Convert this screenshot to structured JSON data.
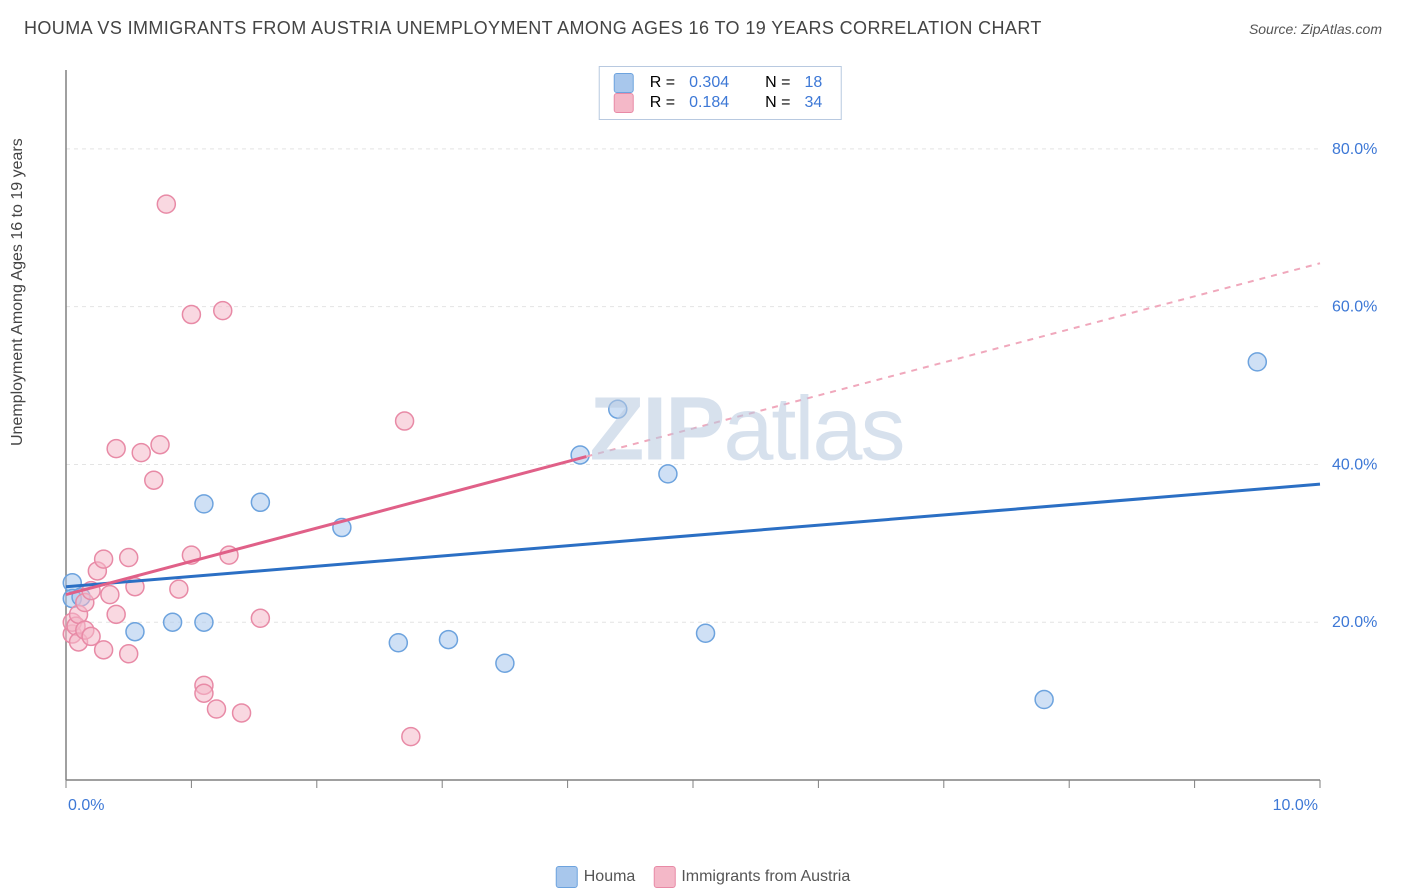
{
  "header": {
    "title": "HOUMA VS IMMIGRANTS FROM AUSTRIA UNEMPLOYMENT AMONG AGES 16 TO 19 YEARS CORRELATION CHART",
    "source_prefix": "Source: ",
    "source": "ZipAtlas.com"
  },
  "y_axis_label": "Unemployment Among Ages 16 to 19 years",
  "watermark": {
    "part1": "ZIP",
    "part2": "atlas"
  },
  "chart": {
    "type": "scatter",
    "background_color": "#ffffff",
    "grid_color": "#e4e4e4",
    "axis_color": "#808080",
    "tick_label_color": "#3d78d6",
    "xlim": [
      0,
      10
    ],
    "ylim": [
      0,
      90
    ],
    "x_ticks_major": [
      0,
      5,
      10
    ],
    "x_tick_labels": [
      "0.0%",
      "",
      "10.0%"
    ],
    "x_ticks_minor": [
      1,
      2,
      3,
      4,
      6,
      7,
      8,
      9
    ],
    "y_ticks": [
      20,
      40,
      60,
      80
    ],
    "y_tick_labels": [
      "20.0%",
      "40.0%",
      "60.0%",
      "80.0%"
    ],
    "marker_radius": 9,
    "marker_opacity": 0.55,
    "line_width": 3,
    "tick_fontsize": 16,
    "series": [
      {
        "id": "houma",
        "label": "Houma",
        "color_fill": "#a8c7ec",
        "color_stroke": "#6da3de",
        "R": "0.304",
        "N": "18",
        "trend": {
          "x1": 0,
          "y1": 24.5,
          "x2": 10,
          "y2": 37.5,
          "dash": false,
          "stroke": "#2b6fc4"
        },
        "points": [
          [
            0.05,
            25.0
          ],
          [
            0.05,
            23.0
          ],
          [
            0.12,
            23.2
          ],
          [
            0.55,
            18.8
          ],
          [
            0.85,
            20.0
          ],
          [
            1.1,
            35.0
          ],
          [
            1.1,
            20.0
          ],
          [
            1.55,
            35.2
          ],
          [
            2.2,
            32.0
          ],
          [
            2.65,
            17.4
          ],
          [
            3.05,
            17.8
          ],
          [
            3.5,
            14.8
          ],
          [
            4.1,
            41.2
          ],
          [
            4.4,
            47.0
          ],
          [
            4.8,
            38.8
          ],
          [
            5.1,
            18.6
          ],
          [
            7.8,
            10.2
          ],
          [
            9.5,
            53.0
          ]
        ]
      },
      {
        "id": "austria",
        "label": "Immigrants from Austria",
        "color_fill": "#f4b8c8",
        "color_stroke": "#e88aa6",
        "R": "0.184",
        "N": "34",
        "trend_solid": {
          "x1": 0,
          "y1": 23.5,
          "x2": 4.15,
          "y2": 41.0,
          "stroke": "#e06088"
        },
        "trend_dash": {
          "x1": 4.15,
          "y1": 41.0,
          "x2": 10,
          "y2": 65.5,
          "stroke": "#f0a8bc"
        },
        "points": [
          [
            0.05,
            18.5
          ],
          [
            0.05,
            20.0
          ],
          [
            0.08,
            19.5
          ],
          [
            0.1,
            21.0
          ],
          [
            0.1,
            17.5
          ],
          [
            0.15,
            19.0
          ],
          [
            0.15,
            22.5
          ],
          [
            0.2,
            18.2
          ],
          [
            0.2,
            24.0
          ],
          [
            0.25,
            26.5
          ],
          [
            0.3,
            16.5
          ],
          [
            0.3,
            28.0
          ],
          [
            0.35,
            23.5
          ],
          [
            0.4,
            21.0
          ],
          [
            0.4,
            42.0
          ],
          [
            0.5,
            16.0
          ],
          [
            0.5,
            28.2
          ],
          [
            0.55,
            24.5
          ],
          [
            0.6,
            41.5
          ],
          [
            0.7,
            38.0
          ],
          [
            0.75,
            42.5
          ],
          [
            0.8,
            73.0
          ],
          [
            0.9,
            24.2
          ],
          [
            1.0,
            28.5
          ],
          [
            1.0,
            59.0
          ],
          [
            1.1,
            12.0
          ],
          [
            1.1,
            11.0
          ],
          [
            1.2,
            9.0
          ],
          [
            1.25,
            59.5
          ],
          [
            1.3,
            28.5
          ],
          [
            1.4,
            8.5
          ],
          [
            1.55,
            20.5
          ],
          [
            2.7,
            45.5
          ],
          [
            2.75,
            5.5
          ]
        ]
      }
    ]
  },
  "top_legend_labels": {
    "R": "R =",
    "N": "N ="
  }
}
